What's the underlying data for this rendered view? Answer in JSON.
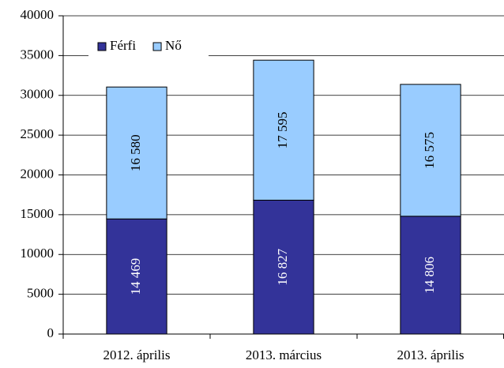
{
  "chart_data": {
    "type": "stacked_bar",
    "categories": [
      "2012. április",
      "2013. március",
      "2013. április"
    ],
    "series": [
      {
        "name": "Férfi",
        "color": "#333399",
        "values": [
          14469,
          16827,
          14806
        ],
        "value_labels": [
          "14 469",
          "16 827",
          "14 806"
        ],
        "label_color": "#ffffff"
      },
      {
        "name": "Nő",
        "color": "#99ccff",
        "values": [
          16580,
          17595,
          16575
        ],
        "value_labels": [
          "16 580",
          "17 595",
          "16 575"
        ],
        "label_color": "#000000"
      }
    ],
    "ylim": [
      0,
      40000
    ],
    "yticks": [
      0,
      5000,
      10000,
      15000,
      20000,
      25000,
      30000,
      35000,
      40000
    ],
    "grid": true,
    "legend": "top-left"
  }
}
